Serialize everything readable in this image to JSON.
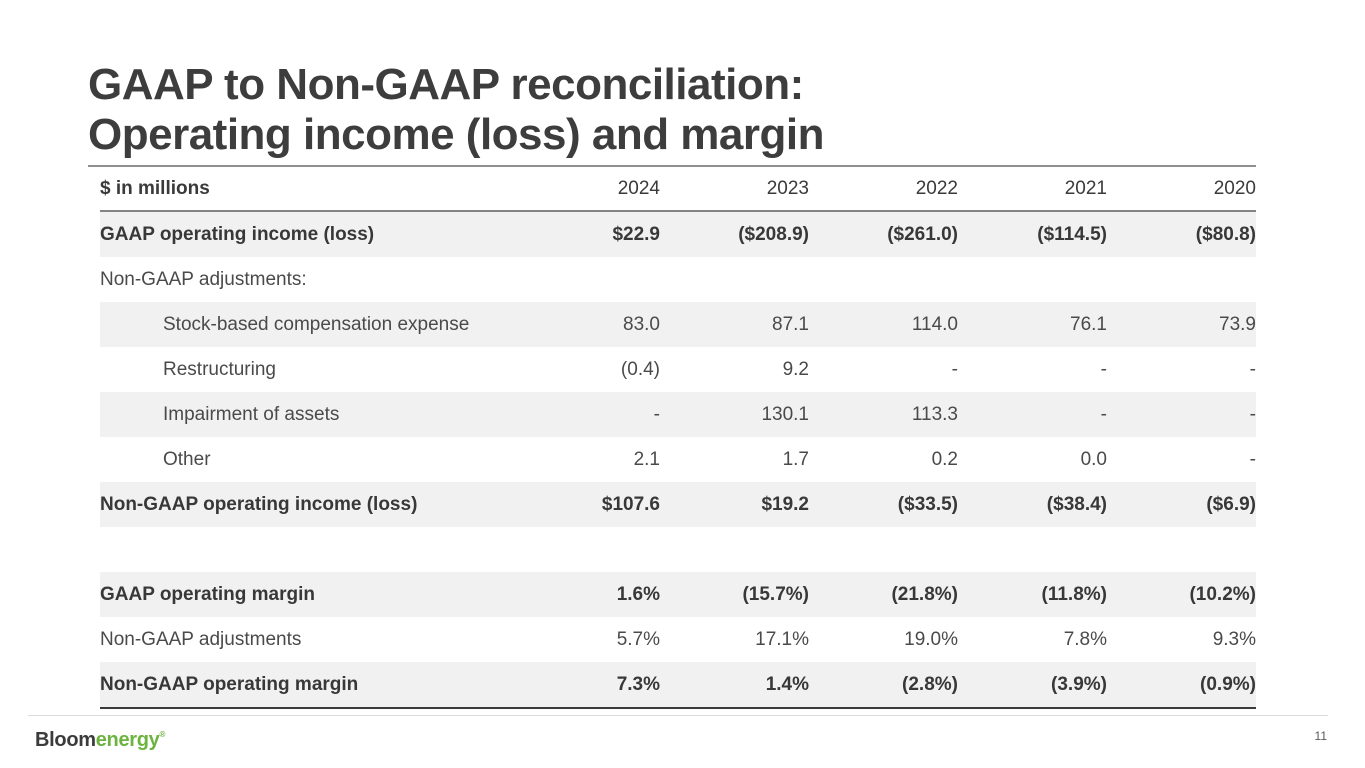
{
  "slide": {
    "title_line1": "GAAP to Non-GAAP reconciliation:",
    "title_line2": "Operating income (loss) and margin",
    "page_number": "11"
  },
  "logo": {
    "part1": "Bloom",
    "part2": "energy",
    "mark": "®"
  },
  "table": {
    "unit_label": "$ in millions",
    "years": [
      "2024",
      "2023",
      "2022",
      "2021",
      "2020"
    ],
    "rows": [
      {
        "label": "GAAP operating income (loss)",
        "values": [
          "$22.9",
          "($208.9)",
          "($261.0)",
          "($114.5)",
          "($80.8)"
        ]
      },
      {
        "label": "Non-GAAP adjustments:",
        "values": [
          "",
          "",
          "",
          "",
          ""
        ]
      },
      {
        "label": "Stock-based compensation expense",
        "values": [
          "83.0",
          "87.1",
          "114.0",
          "76.1",
          "73.9"
        ]
      },
      {
        "label": "Restructuring",
        "values": [
          "(0.4)",
          "9.2",
          "-",
          "-",
          "-"
        ]
      },
      {
        "label": "Impairment of assets",
        "values": [
          "-",
          "130.1",
          "113.3",
          "-",
          "-"
        ]
      },
      {
        "label": "Other",
        "values": [
          "2.1",
          "1.7",
          "0.2",
          "0.0",
          "-"
        ]
      },
      {
        "label": "Non-GAAP operating income (loss)",
        "values": [
          "$107.6",
          "$19.2",
          "($33.5)",
          "($38.4)",
          "($6.9)"
        ]
      },
      {
        "label": "",
        "values": [
          "",
          "",
          "",
          "",
          ""
        ]
      },
      {
        "label": "GAAP operating margin",
        "values": [
          "1.6%",
          "(15.7%)",
          "(21.8%)",
          "(11.8%)",
          "(10.2%)"
        ]
      },
      {
        "label": "Non-GAAP adjustments",
        "values": [
          "5.7%",
          "17.1%",
          "19.0%",
          "7.8%",
          "9.3%"
        ]
      },
      {
        "label": "Non-GAAP operating margin",
        "values": [
          "7.3%",
          "1.4%",
          "(2.8%)",
          "(3.9%)",
          "(0.9%)"
        ]
      }
    ]
  },
  "colors": {
    "accent_green": "#6cb33f",
    "text_dark": "#3a3a3a",
    "row_shade": "#f1f1f1",
    "rule_gray": "#8f8f8f"
  }
}
